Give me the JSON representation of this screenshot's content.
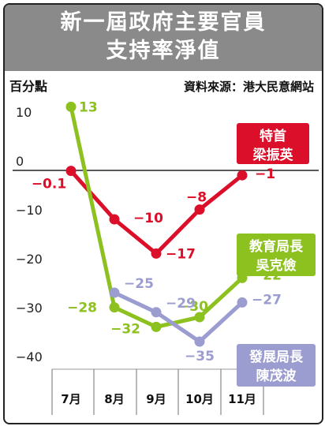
{
  "header": {
    "title_line1": "新一屆政府主要官員",
    "title_line2": "支持率淨值"
  },
  "chart_data": {
    "type": "line",
    "unit_label": "百分點",
    "source": "資料來源：港大民意網站",
    "categories": [
      "7月",
      "8月",
      "9月",
      "10月",
      "11月"
    ],
    "ylim": [
      -40,
      10
    ],
    "yticks": [
      10,
      0,
      -10,
      -20,
      -30,
      -40
    ],
    "ytick_labels": [
      "10",
      "0",
      "−10",
      "−20",
      "−30",
      "−40"
    ],
    "series": [
      {
        "name": "特首\n梁振英",
        "legend_lines": [
          "特首",
          "梁振英"
        ],
        "color": "#dc0f2a",
        "values": [
          -0.1,
          -10,
          -17,
          -8,
          -1
        ],
        "labels": [
          "−0.1",
          "−10",
          "−17",
          "−8",
          "−1"
        ]
      },
      {
        "name": "教育局長\n吳克儉",
        "legend_lines": [
          "教育局長",
          "吳克儉"
        ],
        "color": "#8cc11f",
        "values": [
          13,
          -28,
          -32,
          -30,
          -22
        ],
        "labels": [
          "13",
          "−28",
          "−32",
          "−30",
          "−22"
        ]
      },
      {
        "name": "發展局長\n陳茂波",
        "legend_lines": [
          "發展局長",
          "陳茂波"
        ],
        "color": "#9b9ccf",
        "values": [
          null,
          -25,
          -29,
          -35,
          -27
        ],
        "labels": [
          "",
          "−25",
          "−29",
          "−35",
          "−27"
        ]
      }
    ],
    "grid": false
  }
}
